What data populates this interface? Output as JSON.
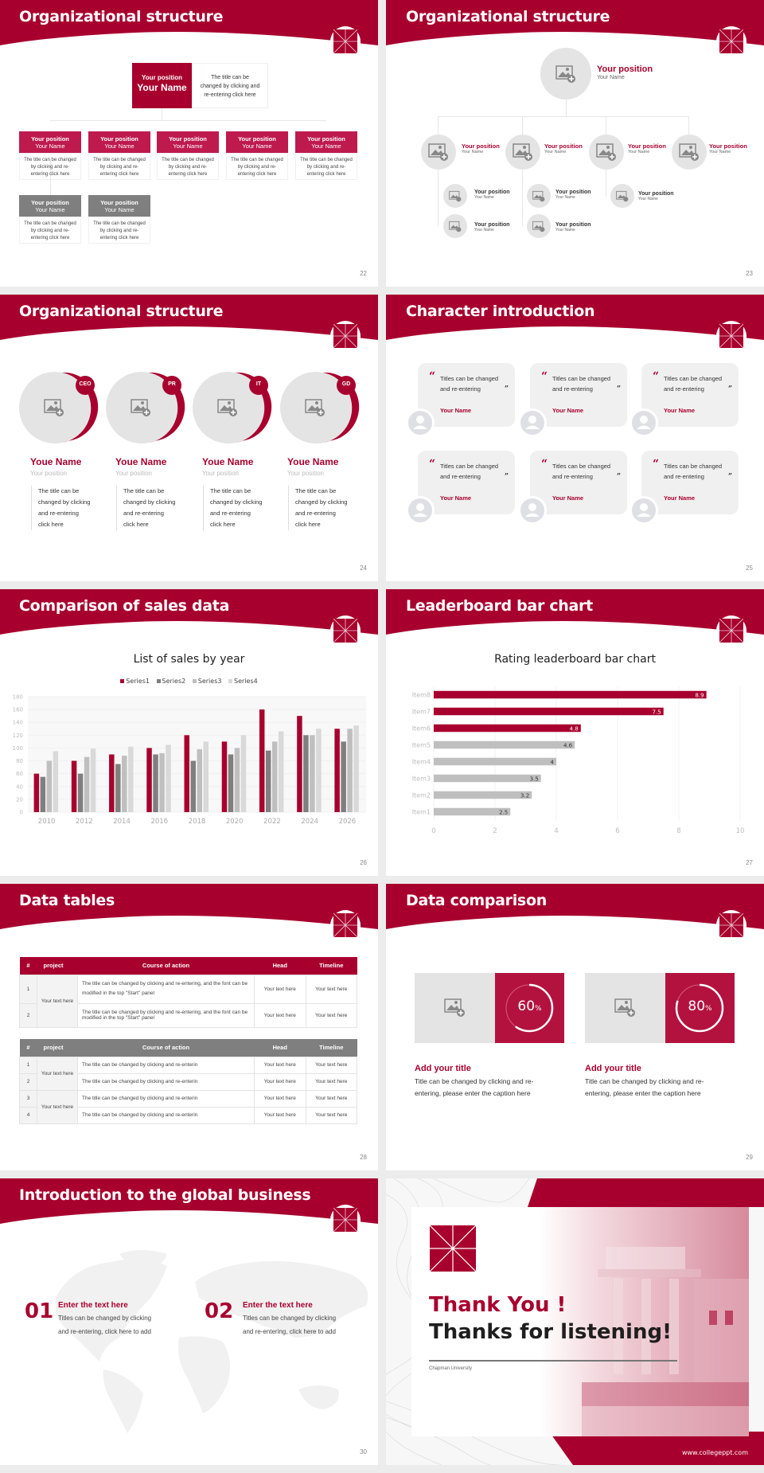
{
  "colors": {
    "accent": "#a8002e",
    "gray_header": "#7f7f7f",
    "light_gray": "#e4e4e4"
  },
  "logo_icon": "college-crest-icon",
  "slides": [
    {
      "page": "22",
      "title": "Organizational structure",
      "top": {
        "position": "Your position",
        "name": "Your Name",
        "desc": [
          "The title can be",
          "changed by clicking and",
          "re-entering click here"
        ]
      },
      "children": [
        {
          "position": "Your position",
          "name": "Your Name",
          "desc": [
            "The title can be changed",
            "by clicking and re-",
            "entering click here"
          ],
          "style": "accent"
        },
        {
          "position": "Your position",
          "name": "Your Name",
          "desc": [
            "The title can be changed",
            "by clicking and re-",
            "entering click here"
          ],
          "style": "accent"
        },
        {
          "position": "Your position",
          "name": "Your Name",
          "desc": [
            "The title can be changed",
            "by clicking and re-",
            "entering click here"
          ],
          "style": "accent"
        },
        {
          "position": "Your position",
          "name": "Your Name",
          "desc": [
            "The title can be changed",
            "by clicking and re-",
            "entering click here"
          ],
          "style": "accent"
        },
        {
          "position": "Your position",
          "name": "Your Name",
          "desc": [
            "The title can be changed",
            "by clicking and re-",
            "entering click here"
          ],
          "style": "accent"
        },
        {
          "position": "Your position",
          "name": "Your Name",
          "desc": [
            "The title can be changed",
            "by clicking and re-",
            "entering click here"
          ],
          "style": "gray"
        },
        {
          "position": "Your position",
          "name": "Your Name",
          "desc": [
            "The title can be changed",
            "by clicking and re-",
            "entering click here"
          ],
          "style": "gray"
        }
      ]
    },
    {
      "page": "23",
      "title": "Organizational structure",
      "top": {
        "position": "Your position",
        "name": "Your Name"
      },
      "level2": [
        {
          "position": "Your position",
          "name": "Your Name"
        },
        {
          "position": "Your position",
          "name": "Your Name"
        },
        {
          "position": "Your position",
          "name": "Your Name"
        },
        {
          "position": "Your position",
          "name": "Your Name"
        }
      ],
      "level3": [
        {
          "position": "Your position",
          "name": "Your Name"
        },
        {
          "position": "Your position",
          "name": "Your Name"
        },
        {
          "position": "Your position",
          "name": "Your Name"
        },
        {
          "position": "Your position",
          "name": "Your Name"
        },
        {
          "position": "Your position",
          "name": "Your Name"
        }
      ]
    },
    {
      "page": "24",
      "title": "Organizational structure",
      "people": [
        {
          "badge": "CEO",
          "name": "Youe Name",
          "position": "Your position",
          "desc": [
            "The title can be",
            "changed by clicking",
            "and re-entering",
            "click here"
          ]
        },
        {
          "badge": "PR",
          "name": "Youe Name",
          "position": "Your position",
          "desc": [
            "The title can be",
            "changed by clicking",
            "and re-entering",
            "click here"
          ]
        },
        {
          "badge": "IT",
          "name": "Youe Name",
          "position": "Your position",
          "desc": [
            "The title can be",
            "changed by clicking",
            "and re-entering",
            "click here"
          ]
        },
        {
          "badge": "GD",
          "name": "Youe Name",
          "position": "Your position",
          "desc": [
            "The title can be",
            "changed by clicking",
            "and re-entering",
            "click here"
          ]
        }
      ]
    },
    {
      "page": "25",
      "title": "Character introduction",
      "cards": [
        {
          "quote": [
            "Titles can be changed",
            "and re-entering"
          ],
          "name": "Your Name"
        },
        {
          "quote": [
            "Titles can be changed",
            "and re-entering"
          ],
          "name": "Your Name"
        },
        {
          "quote": [
            "Titles can be changed",
            "and re-entering"
          ],
          "name": "Your Name"
        },
        {
          "quote": [
            "Titles can be changed",
            "and re-entering"
          ],
          "name": "Your Name"
        },
        {
          "quote": [
            "Titles can be changed",
            "and re-entering"
          ],
          "name": "Your Name"
        },
        {
          "quote": [
            "Titles can be changed",
            "and re-entering"
          ],
          "name": "Your Name"
        }
      ],
      "open_quote": "“",
      "close_quote": "”"
    },
    {
      "page": "26",
      "title": "Comparison of sales data"
    },
    {
      "page": "27",
      "title": "Leaderboard bar chart"
    },
    {
      "page": "28",
      "title": "Data tables",
      "table1": {
        "headers": [
          "#",
          "project",
          "Course of action",
          "Head",
          "Timeline"
        ],
        "project": "Your text here",
        "rows": [
          {
            "n": "1",
            "action": "The title can be changed by clicking and re-entering, and the font can be modified in the top \"Start\" panel",
            "head": "Your text here",
            "timeline": "Your text here"
          },
          {
            "n": "2",
            "action": "The title can be changed by clicking and re-entering, and the font can be modified in the top \"Start\" panel",
            "head": "Your text here",
            "timeline": "Your text here"
          }
        ]
      },
      "table2": {
        "headers": [
          "#",
          "project",
          "Course of action",
          "Head",
          "Timeline"
        ],
        "projects": [
          "Your text here",
          "Your text here"
        ],
        "rows": [
          {
            "n": "1",
            "action": "The title can be changed by clicking and re-enterin",
            "head": "Your text here",
            "timeline": "Your text here"
          },
          {
            "n": "2",
            "action": "The title can be changed by clicking and re-enterin",
            "head": "Your text here",
            "timeline": "Your text here"
          },
          {
            "n": "3",
            "action": "The title can be changed by clicking and re-enterin",
            "head": "Your text here",
            "timeline": "Your text here"
          },
          {
            "n": "4",
            "action": "The title can be changed by clicking and re-enterin",
            "head": "Your text here",
            "timeline": "Your text here"
          }
        ]
      }
    },
    {
      "page": "29",
      "title": "Data comparison",
      "items": [
        {
          "percent": "60",
          "unit": "%",
          "title": "Add your title",
          "text": [
            "Title can be changed by clicking and re-",
            "entering, please enter the caption here"
          ]
        },
        {
          "percent": "80",
          "unit": "%",
          "title": "Add your title",
          "text": [
            "Title can be changed by clicking and re-",
            "entering, please enter the caption here"
          ]
        }
      ]
    },
    {
      "page": "30",
      "title": "Introduction to the global business",
      "items": [
        {
          "num": "01",
          "heading": "Enter the text here",
          "text": [
            "Titles can be changed by clicking",
            "and re-entering, click here to add"
          ]
        },
        {
          "num": "02",
          "heading": "Enter the text here",
          "text": [
            "Titles can be changed by clicking",
            "and re-entering, click here to add"
          ]
        }
      ]
    },
    {
      "page": "",
      "title": "",
      "thank": "Thank You !",
      "thanks": "Thanks for listening!",
      "university": "Chapman University",
      "website": "www.collegeppt.com"
    }
  ],
  "chart_data": [
    {
      "type": "bar",
      "title": "List of sales by year",
      "xlabel": "",
      "ylabel": "",
      "categories": [
        "2010",
        "2012",
        "2014",
        "2016",
        "2018",
        "2020",
        "2022",
        "2024",
        "2026"
      ],
      "series": [
        {
          "name": "Series1",
          "color": "#a8002e",
          "values": [
            60,
            80,
            90,
            100,
            120,
            110,
            160,
            150,
            130
          ]
        },
        {
          "name": "Series2",
          "color": "#7f7f7f",
          "values": [
            55,
            60,
            75,
            90,
            80,
            90,
            96,
            120,
            110
          ]
        },
        {
          "name": "Series3",
          "color": "#bfbfbf",
          "values": [
            80,
            86,
            88,
            92,
            98,
            100,
            110,
            120,
            130
          ]
        },
        {
          "name": "Series4",
          "color": "#d9d9d9",
          "values": [
            95,
            99,
            102,
            105,
            110,
            120,
            126,
            130,
            135
          ]
        }
      ],
      "ylim": [
        0,
        180
      ],
      "yticks": [
        0,
        20,
        40,
        60,
        80,
        100,
        120,
        140,
        160,
        180
      ],
      "grid": true,
      "legend_position": "top"
    },
    {
      "type": "bar",
      "orientation": "horizontal",
      "title": "Rating leaderboard bar chart",
      "xlabel": "",
      "ylabel": "",
      "categories": [
        "Item8",
        "Item7",
        "Item6",
        "Item5",
        "Item4",
        "Item3",
        "Item2",
        "Item1"
      ],
      "values": [
        8.9,
        7.5,
        4.8,
        4.6,
        4,
        3.5,
        3.2,
        2.5
      ],
      "labels": [
        "8.9",
        "7.5",
        "4.8",
        "4.6",
        "4",
        "3.5",
        "3.2",
        "2.5"
      ],
      "colors": [
        "#a8002e",
        "#a8002e",
        "#a8002e",
        "#bfbfbf",
        "#bfbfbf",
        "#bfbfbf",
        "#bfbfbf",
        "#bfbfbf"
      ],
      "xlim": [
        0,
        10
      ],
      "xticks": [
        "0",
        "2",
        "4",
        "6",
        "8",
        "10"
      ],
      "grid": true
    }
  ]
}
